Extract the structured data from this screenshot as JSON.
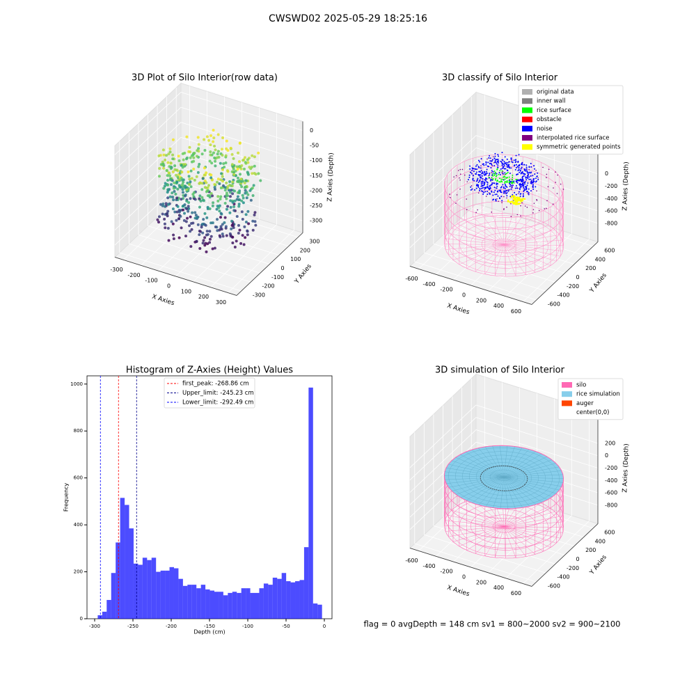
{
  "title": "CWSWD02 2025-05-29 18:25:16",
  "footer": "flag = 0     avgDepth = 148 cm  sv1 = 800~2000  sv2 = 900~2100",
  "chart_data": [
    {
      "type": "scatter3d",
      "title": "3D Plot of Silo Interior(row data)",
      "x_label": "X Axies",
      "y_label": "Y Axies",
      "z_label": "Z Axies (Depth)",
      "xlim": [
        -350,
        350
      ],
      "ylim": [
        -350,
        350
      ],
      "zlim": [
        -340,
        30
      ],
      "xticks": [
        -300,
        -200,
        -100,
        0,
        100,
        200,
        300
      ],
      "yticks": [
        -300,
        -200,
        -100,
        0,
        100,
        200,
        300
      ],
      "zticks": [
        0,
        -50,
        -100,
        -150,
        -200,
        -250,
        -300
      ],
      "grid": true
    },
    {
      "type": "classify3d",
      "title": "3D classify of Silo Interior",
      "x_label": "X Axies",
      "y_label": "Y Axies",
      "z_label": "Z Axies (Depth)",
      "xlim": [
        -700,
        700
      ],
      "ylim": [
        -700,
        700
      ],
      "zlim": [
        -1100,
        700
      ],
      "xticks": [
        -600,
        -400,
        -200,
        0,
        200,
        400,
        600
      ],
      "yticks": [
        -600,
        -400,
        -200,
        0,
        200,
        400,
        600
      ],
      "zticks": [
        0,
        -200,
        -400,
        -600,
        -800
      ],
      "grid": true,
      "series": [
        {
          "name": "original data",
          "color": "#b0b0b0"
        },
        {
          "name": "inner wall",
          "color": "#808080"
        },
        {
          "name": "rice surface",
          "color": "#00ff00"
        },
        {
          "name": "obstacle",
          "color": "#ff0000"
        },
        {
          "name": "noise",
          "color": "#0000ff"
        },
        {
          "name": "interpolated rice surface",
          "color": "#800080"
        },
        {
          "name": "symmetric generated points",
          "color": "#ffff00"
        }
      ]
    },
    {
      "type": "histogram",
      "title": "Histogram of Z-Axies (Height) Values",
      "x_label": "Depth (cm)",
      "y_label": "Frequency",
      "color": "#0000ff",
      "bins": [
        -296,
        -290.14,
        -284.28,
        -278.42,
        -272.56,
        -266.7,
        -260.84,
        -254.98,
        -249.12,
        -243.26,
        -237.4,
        -231.54,
        -225.68,
        -219.82,
        -213.96,
        -208.1,
        -202.24,
        -196.38,
        -190.52,
        -184.66,
        -178.8,
        -172.94,
        -167.08,
        -161.22,
        -155.36,
        -149.5,
        -143.64,
        -137.78,
        -131.92,
        -126.06,
        -120.2,
        -114.34,
        -108.48,
        -102.62,
        -96.76,
        -90.9,
        -85.04,
        -79.18,
        -73.32,
        -67.46,
        -61.6,
        -55.74,
        -49.88,
        -44.02,
        -38.16,
        -32.3,
        -26.44,
        -20.58,
        -14.72,
        -8.86,
        -3
      ],
      "values": [
        15,
        30,
        80,
        195,
        325,
        515,
        485,
        385,
        235,
        230,
        260,
        250,
        260,
        200,
        205,
        205,
        220,
        215,
        170,
        140,
        145,
        145,
        130,
        145,
        125,
        120,
        115,
        115,
        100,
        110,
        115,
        110,
        130,
        130,
        110,
        110,
        130,
        150,
        145,
        175,
        170,
        195,
        160,
        155,
        160,
        165,
        305,
        985,
        65,
        60
      ],
      "vlines": [
        {
          "label": "first_peak: -268.86 cm",
          "value": -268.86,
          "color": "#ff0000"
        },
        {
          "label": "Upper_limit: -245.23 cm",
          "value": -245.23,
          "color": "#00008b"
        },
        {
          "label": "Lower_limit: -292.49 cm",
          "value": -292.49,
          "color": "#0000ff"
        }
      ],
      "xlim": [
        -310,
        10
      ],
      "ylim": [
        0,
        1035
      ],
      "xticks": [
        -300,
        -250,
        -200,
        -150,
        -100,
        -50,
        0
      ],
      "yticks": [
        0,
        200,
        400,
        600,
        800,
        1000
      ]
    },
    {
      "type": "simulation3d",
      "title": "3D simulation of Silo Interior",
      "x_label": "X Axies",
      "y_label": "Y Axies",
      "z_label": "Z Axies (Depth)",
      "xlim": [
        -700,
        700
      ],
      "ylim": [
        -700,
        700
      ],
      "zlim": [
        -1100,
        700
      ],
      "xticks": [
        -600,
        -400,
        -200,
        0,
        200,
        400,
        600
      ],
      "yticks": [
        -600,
        -400,
        -200,
        0,
        200,
        400,
        600
      ],
      "zticks": [
        200,
        0,
        -200,
        -400,
        -600,
        -800
      ],
      "grid": true,
      "series": [
        {
          "name": "silo",
          "color": "#ff69b4"
        },
        {
          "name": "rice simulation",
          "color": "#87ceeb"
        },
        {
          "name": "auger",
          "color": "#ff4500"
        },
        {
          "name": "center(0,0)",
          "color": "#ffffff"
        }
      ]
    }
  ]
}
